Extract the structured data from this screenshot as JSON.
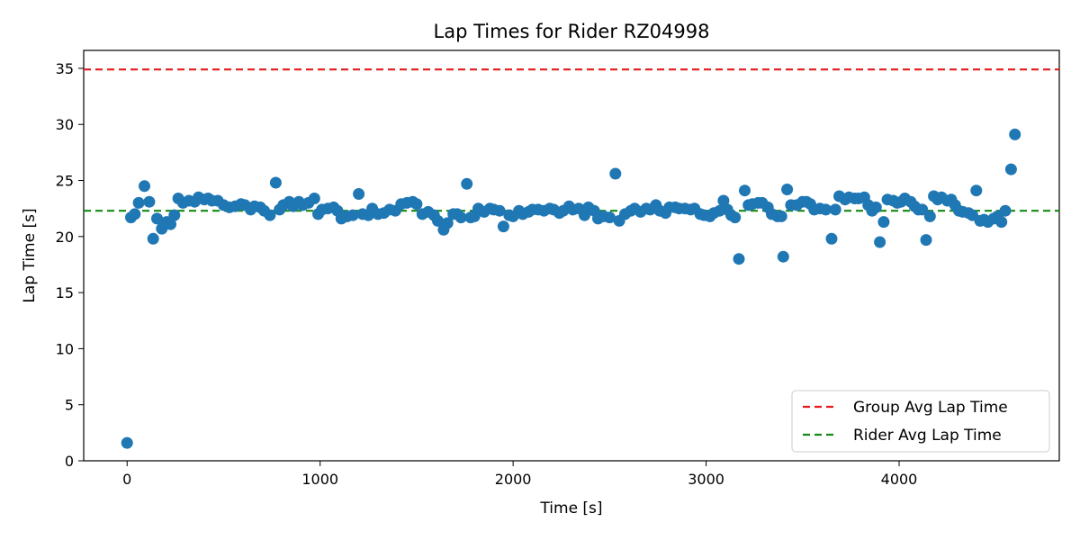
{
  "chart_data": {
    "type": "scatter",
    "title": "Lap Times for Rider RZ04998",
    "xlabel": "Time [s]",
    "ylabel": "Lap Time [s]",
    "xlim": [
      -225,
      4830
    ],
    "ylim": [
      0,
      36.6
    ],
    "xticks": [
      0,
      1000,
      2000,
      3000,
      4000
    ],
    "yticks": [
      0,
      5,
      10,
      15,
      20,
      25,
      30,
      35
    ],
    "grid": false,
    "legend_position": "lower-right",
    "colors": {
      "points": "#1f77b4",
      "group_avg": "#e41a1c",
      "rider_avg": "#138a13"
    },
    "reference_lines": [
      {
        "name": "Group Avg Lap Time",
        "y": 34.9,
        "color": "#e41a1c",
        "style": "dashed"
      },
      {
        "name": "Rider Avg Lap Time",
        "y": 22.3,
        "color": "#138a13",
        "style": "dashed"
      }
    ],
    "series": [
      {
        "name": "Lap Time",
        "points": [
          [
            0,
            1.6
          ],
          [
            20,
            21.7
          ],
          [
            40,
            22.0
          ],
          [
            60,
            23.0
          ],
          [
            90,
            24.5
          ],
          [
            115,
            23.1
          ],
          [
            135,
            19.8
          ],
          [
            155,
            21.6
          ],
          [
            180,
            20.7
          ],
          [
            205,
            21.3
          ],
          [
            225,
            21.1
          ],
          [
            245,
            21.9
          ],
          [
            265,
            23.4
          ],
          [
            290,
            23.0
          ],
          [
            320,
            23.2
          ],
          [
            350,
            23.1
          ],
          [
            370,
            23.5
          ],
          [
            400,
            23.3
          ],
          [
            420,
            23.4
          ],
          [
            440,
            23.2
          ],
          [
            470,
            23.2
          ],
          [
            500,
            22.8
          ],
          [
            530,
            22.6
          ],
          [
            560,
            22.7
          ],
          [
            590,
            22.9
          ],
          [
            610,
            22.8
          ],
          [
            640,
            22.4
          ],
          [
            660,
            22.7
          ],
          [
            690,
            22.6
          ],
          [
            710,
            22.3
          ],
          [
            740,
            21.9
          ],
          [
            770,
            24.8
          ],
          [
            790,
            22.4
          ],
          [
            810,
            22.8
          ],
          [
            840,
            23.1
          ],
          [
            860,
            22.7
          ],
          [
            890,
            23.1
          ],
          [
            910,
            22.8
          ],
          [
            940,
            23.0
          ],
          [
            970,
            23.4
          ],
          [
            990,
            22.0
          ],
          [
            1010,
            22.4
          ],
          [
            1040,
            22.5
          ],
          [
            1070,
            22.6
          ],
          [
            1090,
            22.3
          ],
          [
            1110,
            21.6
          ],
          [
            1140,
            21.8
          ],
          [
            1170,
            21.9
          ],
          [
            1200,
            23.8
          ],
          [
            1220,
            22.0
          ],
          [
            1250,
            21.9
          ],
          [
            1270,
            22.5
          ],
          [
            1300,
            22.0
          ],
          [
            1330,
            22.1
          ],
          [
            1360,
            22.4
          ],
          [
            1390,
            22.3
          ],
          [
            1420,
            22.9
          ],
          [
            1450,
            23.0
          ],
          [
            1480,
            23.1
          ],
          [
            1500,
            22.9
          ],
          [
            1530,
            22.0
          ],
          [
            1560,
            22.2
          ],
          [
            1590,
            21.9
          ],
          [
            1610,
            21.4
          ],
          [
            1640,
            20.6
          ],
          [
            1660,
            21.2
          ],
          [
            1690,
            22.0
          ],
          [
            1710,
            22.0
          ],
          [
            1730,
            21.7
          ],
          [
            1760,
            24.7
          ],
          [
            1780,
            21.7
          ],
          [
            1800,
            21.8
          ],
          [
            1820,
            22.5
          ],
          [
            1850,
            22.2
          ],
          [
            1880,
            22.5
          ],
          [
            1900,
            22.4
          ],
          [
            1930,
            22.3
          ],
          [
            1950,
            20.9
          ],
          [
            1980,
            21.9
          ],
          [
            2000,
            21.8
          ],
          [
            2030,
            22.3
          ],
          [
            2050,
            22.0
          ],
          [
            2080,
            22.2
          ],
          [
            2100,
            22.4
          ],
          [
            2130,
            22.4
          ],
          [
            2160,
            22.3
          ],
          [
            2190,
            22.5
          ],
          [
            2210,
            22.4
          ],
          [
            2240,
            22.1
          ],
          [
            2260,
            22.3
          ],
          [
            2290,
            22.7
          ],
          [
            2310,
            22.4
          ],
          [
            2340,
            22.5
          ],
          [
            2370,
            21.9
          ],
          [
            2390,
            22.6
          ],
          [
            2420,
            22.3
          ],
          [
            2440,
            21.6
          ],
          [
            2470,
            21.8
          ],
          [
            2500,
            21.7
          ],
          [
            2530,
            25.6
          ],
          [
            2550,
            21.4
          ],
          [
            2580,
            22.0
          ],
          [
            2610,
            22.3
          ],
          [
            2630,
            22.5
          ],
          [
            2660,
            22.2
          ],
          [
            2690,
            22.5
          ],
          [
            2710,
            22.4
          ],
          [
            2740,
            22.8
          ],
          [
            2760,
            22.3
          ],
          [
            2790,
            22.1
          ],
          [
            2810,
            22.6
          ],
          [
            2840,
            22.6
          ],
          [
            2860,
            22.5
          ],
          [
            2890,
            22.5
          ],
          [
            2920,
            22.4
          ],
          [
            2940,
            22.5
          ],
          [
            2970,
            22.0
          ],
          [
            2990,
            21.9
          ],
          [
            3020,
            21.8
          ],
          [
            3040,
            22.1
          ],
          [
            3070,
            22.3
          ],
          [
            3090,
            23.2
          ],
          [
            3110,
            22.4
          ],
          [
            3130,
            21.9
          ],
          [
            3150,
            21.7
          ],
          [
            3170,
            18.0
          ],
          [
            3200,
            24.1
          ],
          [
            3220,
            22.8
          ],
          [
            3240,
            22.9
          ],
          [
            3270,
            23.0
          ],
          [
            3290,
            23.0
          ],
          [
            3320,
            22.6
          ],
          [
            3340,
            22.0
          ],
          [
            3370,
            21.8
          ],
          [
            3390,
            21.8
          ],
          [
            3400,
            18.2
          ],
          [
            3420,
            24.2
          ],
          [
            3440,
            22.8
          ],
          [
            3470,
            22.8
          ],
          [
            3500,
            23.1
          ],
          [
            3520,
            23.1
          ],
          [
            3540,
            22.9
          ],
          [
            3560,
            22.4
          ],
          [
            3590,
            22.5
          ],
          [
            3620,
            22.4
          ],
          [
            3650,
            19.8
          ],
          [
            3670,
            22.4
          ],
          [
            3690,
            23.6
          ],
          [
            3720,
            23.3
          ],
          [
            3740,
            23.5
          ],
          [
            3770,
            23.4
          ],
          [
            3790,
            23.4
          ],
          [
            3820,
            23.5
          ],
          [
            3840,
            22.8
          ],
          [
            3860,
            22.3
          ],
          [
            3880,
            22.6
          ],
          [
            3900,
            19.5
          ],
          [
            3920,
            21.3
          ],
          [
            3940,
            23.3
          ],
          [
            3970,
            23.2
          ],
          [
            3990,
            23.0
          ],
          [
            4010,
            23.1
          ],
          [
            4030,
            23.4
          ],
          [
            4060,
            23.1
          ],
          [
            4080,
            22.7
          ],
          [
            4100,
            22.4
          ],
          [
            4120,
            22.4
          ],
          [
            4140,
            19.7
          ],
          [
            4160,
            21.8
          ],
          [
            4180,
            23.6
          ],
          [
            4200,
            23.3
          ],
          [
            4220,
            23.5
          ],
          [
            4250,
            23.2
          ],
          [
            4270,
            23.3
          ],
          [
            4290,
            22.8
          ],
          [
            4310,
            22.3
          ],
          [
            4330,
            22.2
          ],
          [
            4360,
            22.1
          ],
          [
            4380,
            21.9
          ],
          [
            4400,
            24.1
          ],
          [
            4420,
            21.4
          ],
          [
            4440,
            21.5
          ],
          [
            4460,
            21.3
          ],
          [
            4490,
            21.6
          ],
          [
            4510,
            21.8
          ],
          [
            4530,
            21.3
          ],
          [
            4550,
            22.3
          ],
          [
            4580,
            26.0
          ],
          [
            4600,
            29.1
          ]
        ]
      }
    ]
  }
}
